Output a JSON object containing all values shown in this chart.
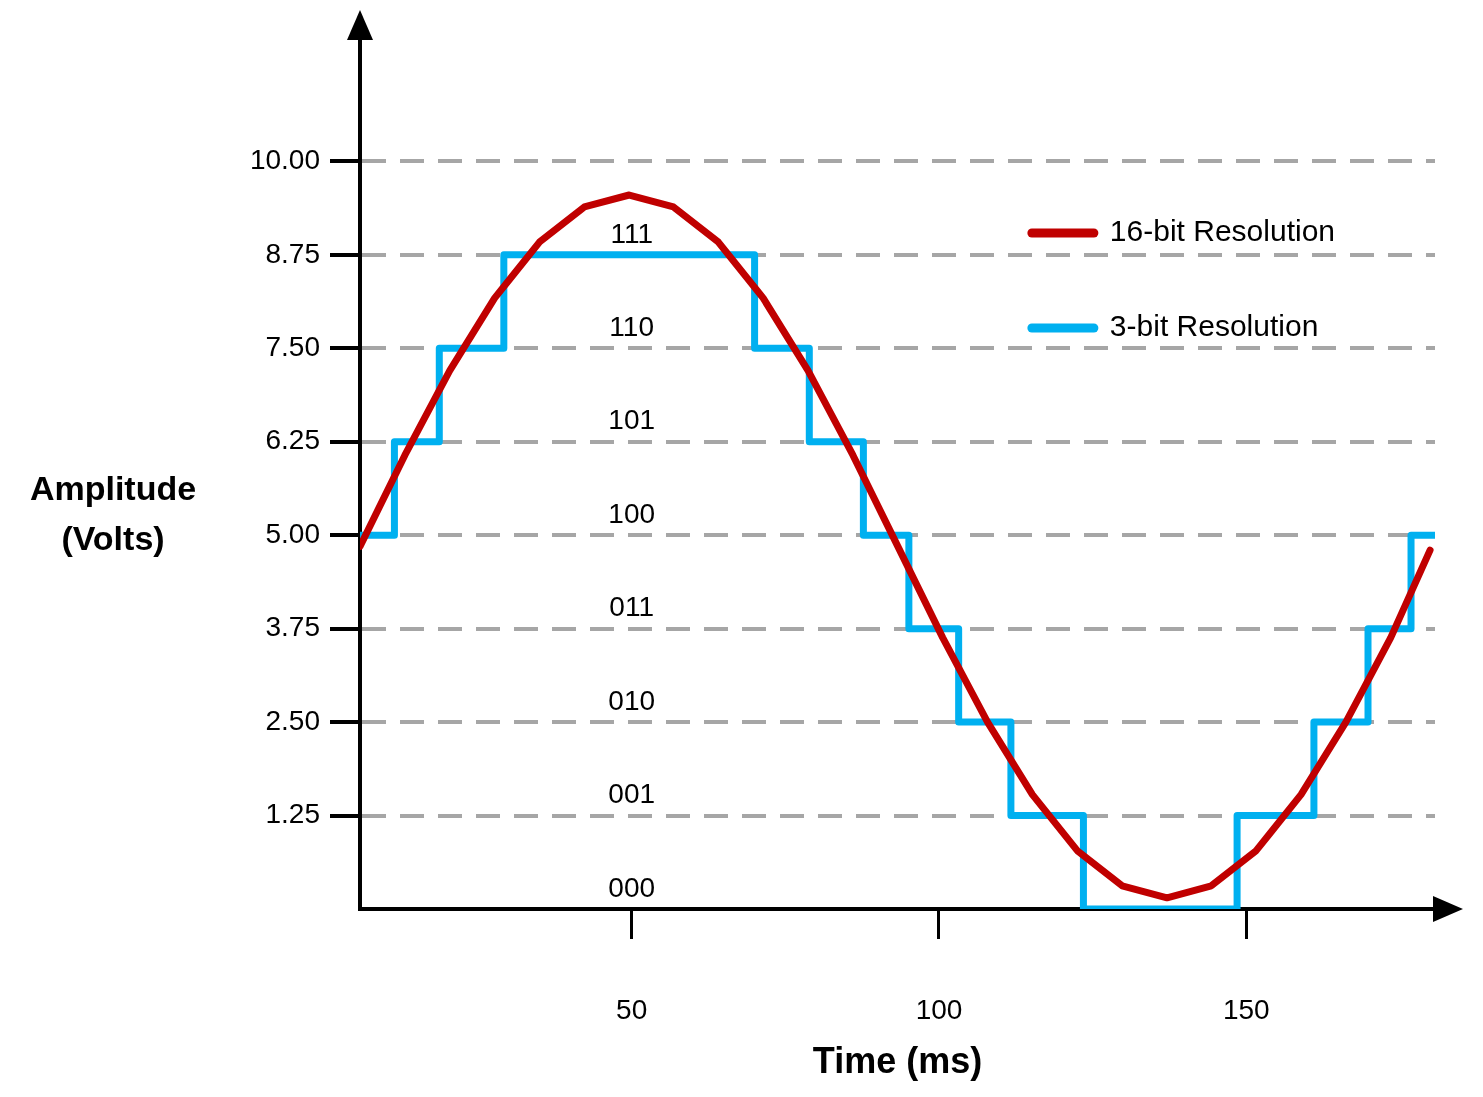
{
  "chart_data": {
    "type": "line",
    "xlabel": "Time (ms)",
    "ylabel": "Amplitude (Volts)",
    "xlim": [
      5.8,
      180.7
    ],
    "xticks": [
      50,
      100,
      150
    ],
    "ylim": [
      0,
      11.65
    ],
    "yticks": [
      {
        "value": 1.25,
        "label": "1.25"
      },
      {
        "value": 2.5,
        "label": "2.50"
      },
      {
        "value": 3.75,
        "label": "3.75"
      },
      {
        "value": 5,
        "label": "5.00"
      },
      {
        "value": 6.25,
        "label": "6.25"
      },
      {
        "value": 7.5,
        "label": "7.50"
      },
      {
        "value": 8.75,
        "label": "8.75"
      },
      {
        "value": 10,
        "label": "10.00"
      }
    ],
    "grid": "y",
    "legend": "top right",
    "series": [
      {
        "name": "16-bit Resolution",
        "type": "line",
        "color": "#c00000",
        "x": [
          5.8,
          13.1,
          20.4,
          27.7,
          35.0,
          42.3,
          49.6,
          56.8,
          64.1,
          71.4,
          78.7,
          86.0,
          93.3,
          100.6,
          107.9,
          115.2,
          122.5,
          129.8,
          137.1,
          144.3,
          151.6,
          158.9,
          166.2,
          173.5,
          179.9
        ],
        "values": [
          4.85,
          6.07,
          7.2,
          8.17,
          8.92,
          9.39,
          9.55,
          9.39,
          8.92,
          8.17,
          7.2,
          6.07,
          4.85,
          3.63,
          2.5,
          1.53,
          0.78,
          0.31,
          0.15,
          0.31,
          0.78,
          1.53,
          2.5,
          3.63,
          4.8
        ]
      },
      {
        "name": "3-bit Resolution",
        "type": "step",
        "color": "#00b0f0",
        "x": [
          5.8,
          11.4,
          18.7,
          29.2,
          70.0,
          78.9,
          87.7,
          95.1,
          103.2,
          111.7,
          123.5,
          148.5,
          161.0,
          169.8,
          176.8,
          180.7
        ],
        "values": [
          5,
          6.25,
          7.5,
          8.75,
          7.5,
          6.25,
          5,
          3.75,
          2.5,
          1.25,
          0,
          1.25,
          2.5,
          3.75,
          5,
          5
        ]
      }
    ],
    "annotations": [
      "111",
      "110",
      "101",
      "100",
      "011",
      "010",
      "001",
      "000"
    ]
  }
}
